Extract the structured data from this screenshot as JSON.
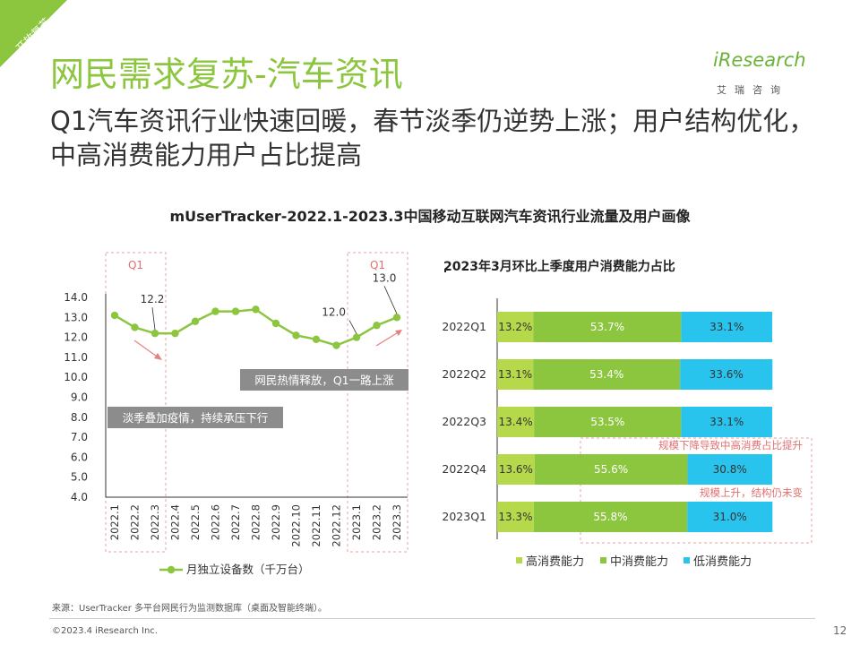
{
  "banner": {
    "text": "开放复苏",
    "color": "#8cc63f"
  },
  "header": {
    "title": "网民需求复苏-汽车资讯",
    "subtitle": "Q1汽车资讯行业快速回暖，春节淡季仍逆势上涨；用户结构优化，中高消费能力用户占比提高"
  },
  "brand": {
    "logo": "iResearch",
    "cn": "艾瑞咨询"
  },
  "chart_title": "mUserTracker-2022.1-2023.3中国移动互联网汽车资讯行业流量及用户画像",
  "chart_data": [
    {
      "type": "line",
      "x": [
        "2022.1",
        "2022.2",
        "2022.3",
        "2022.4",
        "2022.5",
        "2022.6",
        "2022.7",
        "2022.8",
        "2022.9",
        "2022.10",
        "2022.11",
        "2022.12",
        "2023.1",
        "2023.2",
        "2023.3"
      ],
      "series": [
        {
          "name": "月独立设备数（千万台）",
          "values": [
            13.1,
            12.5,
            12.2,
            12.2,
            12.8,
            13.3,
            13.3,
            13.4,
            12.7,
            12.1,
            11.9,
            11.6,
            12.0,
            12.6,
            13.0
          ],
          "color": "#8cc63f"
        }
      ],
      "ylim": [
        4.0,
        14.0
      ],
      "yticks": [
        "14.0",
        "13.0",
        "12.0",
        "11.0",
        "10.0",
        "9.0",
        "8.0",
        "7.0",
        "6.0",
        "5.0",
        "4.0"
      ],
      "value_labels": [
        {
          "index": 2,
          "text": "12.2"
        },
        {
          "index": 12,
          "text": "12.0"
        },
        {
          "index": 14,
          "text": "13.0"
        }
      ],
      "highlights": [
        {
          "label": "Q1",
          "from": 0,
          "to": 2
        },
        {
          "label": "Q1",
          "from": 12,
          "to": 14
        }
      ],
      "annotations": [
        "网民热情释放，Q1一路上涨",
        "淡季叠加疫情，持续承压下行"
      ]
    },
    {
      "type": "bar",
      "stacked": true,
      "horizontal": true,
      "title": "2023年3月环比上季度用户消费能力占比",
      "categories": [
        "2022Q1",
        "2022Q2",
        "2022Q3",
        "2022Q4",
        "2023Q1"
      ],
      "series": [
        {
          "name": "高消费能力",
          "values": [
            13.2,
            13.1,
            13.4,
            13.6,
            13.3
          ],
          "labels": [
            "13.2%",
            "13.1%",
            "13.4%",
            "13.6%",
            "13.3%"
          ],
          "color": "#b5d94a"
        },
        {
          "name": "中消费能力",
          "values": [
            53.7,
            53.4,
            53.5,
            55.6,
            55.8
          ],
          "labels": [
            "53.7%",
            "53.4%",
            "53.5%",
            "55.6%",
            "55.8%"
          ],
          "color": "#8cc63f"
        },
        {
          "name": "低消费能力",
          "values": [
            33.1,
            33.6,
            33.1,
            30.8,
            31.0
          ],
          "labels": [
            "33.1%",
            "33.6%",
            "33.1%",
            "30.8%",
            "31.0%"
          ],
          "color": "#29c4ee"
        }
      ],
      "annotations": [
        "规模下降导致中高消费占比提升",
        "规模上升，结构仍未变"
      ]
    }
  ],
  "source": "来源：UserTracker 多平台网民行为监测数据库（桌面及智能终端）。",
  "copyright": "©2023.4 iResearch Inc.",
  "page_number": "12"
}
